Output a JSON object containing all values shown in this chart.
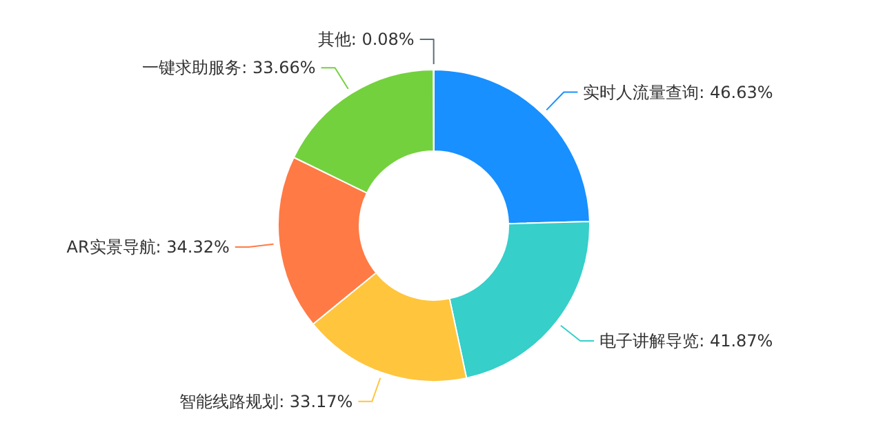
{
  "chart_data": {
    "type": "donut",
    "categories": [
      "实时人流量查询",
      "电子讲解导览",
      "智能线路规划",
      "AR实景导航",
      "一键求助服务",
      "其他"
    ],
    "values": [
      46.63,
      41.87,
      33.17,
      34.32,
      33.66,
      0.08
    ],
    "value_labels": [
      "46.63%",
      "41.87%",
      "33.17%",
      "34.32%",
      "33.66%",
      "0.08%"
    ],
    "colors": [
      "#1890ff",
      "#36cfca",
      "#ffc53d",
      "#ff7a45",
      "#73d13d",
      "#5b6e7a"
    ]
  }
}
